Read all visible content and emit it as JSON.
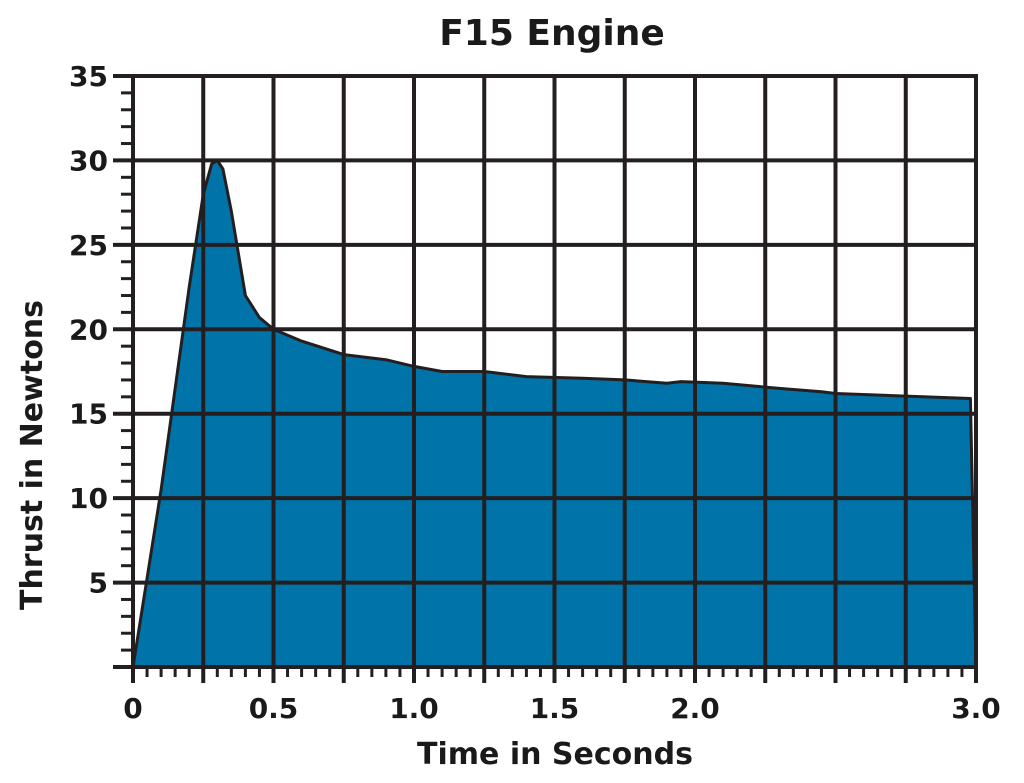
{
  "chart_data": {
    "type": "area",
    "title": "F15 Engine",
    "xlabel": "Time in Seconds",
    "ylabel": "Thrust in Newtons",
    "xlim": [
      0,
      3.0
    ],
    "ylim": [
      0,
      35
    ],
    "xticks": [
      "0",
      "0.5",
      "1.0",
      "1.5",
      "2.0",
      "3.0"
    ],
    "xtick_values": [
      0,
      0.5,
      1.0,
      1.5,
      2.0,
      3.0
    ],
    "yticks": [
      "5",
      "10",
      "15",
      "20",
      "25",
      "30",
      "35"
    ],
    "ytick_values": [
      5,
      10,
      15,
      20,
      25,
      30,
      35
    ],
    "grid": true,
    "fill_color": "#0074a8",
    "line_color": "#231f20",
    "series": [
      {
        "x": [
          0.0,
          0.1,
          0.2,
          0.25,
          0.28,
          0.3,
          0.32,
          0.35,
          0.4,
          0.45,
          0.5,
          0.6,
          0.75,
          0.9,
          1.0,
          1.1,
          1.25,
          1.4,
          1.6,
          1.75,
          1.9,
          1.95,
          2.1,
          2.3,
          2.45,
          2.5,
          2.98,
          3.0
        ],
        "y": [
          0.0,
          10.5,
          22.5,
          28.0,
          29.8,
          30.0,
          29.5,
          27.0,
          22.0,
          20.7,
          20.0,
          19.3,
          18.5,
          18.2,
          17.8,
          17.5,
          17.5,
          17.2,
          17.1,
          17.0,
          16.8,
          16.9,
          16.8,
          16.5,
          16.3,
          16.2,
          15.9,
          0.0
        ]
      }
    ]
  }
}
